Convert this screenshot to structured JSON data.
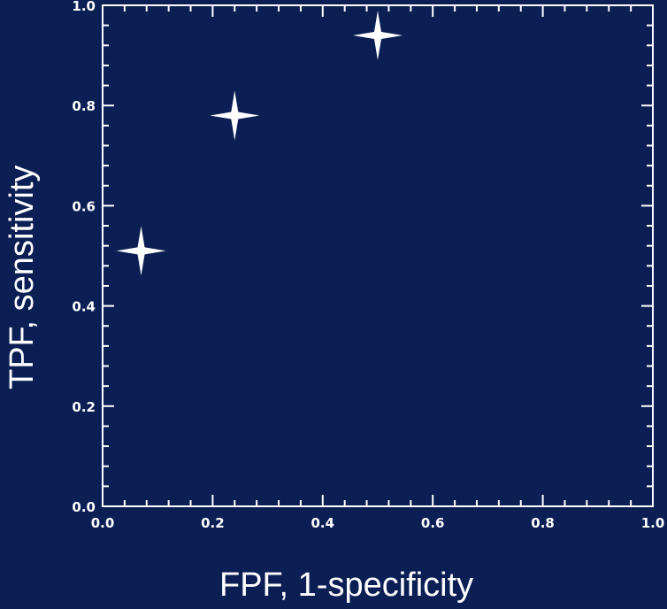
{
  "chart_data": {
    "type": "scatter",
    "title": "",
    "xlabel": "FPF, 1-specificity",
    "ylabel": "TPF, sensitivity",
    "xlim": [
      0.0,
      1.0
    ],
    "ylim": [
      0.0,
      1.0
    ],
    "x_ticks": [
      "0.0",
      "0.2",
      "0.4",
      "0.6",
      "0.8",
      "1.0"
    ],
    "y_ticks": [
      "0.0",
      "0.2",
      "0.4",
      "0.6",
      "0.8",
      "1.0"
    ],
    "grid": false,
    "marker": "four-point-star",
    "series": [
      {
        "points": [
          {
            "x": 0.07,
            "y": 0.51
          },
          {
            "x": 0.24,
            "y": 0.78
          },
          {
            "x": 0.5,
            "y": 0.94
          }
        ]
      }
    ]
  },
  "colors": {
    "background": "#0b1f55",
    "foreground": "#ffffff"
  }
}
